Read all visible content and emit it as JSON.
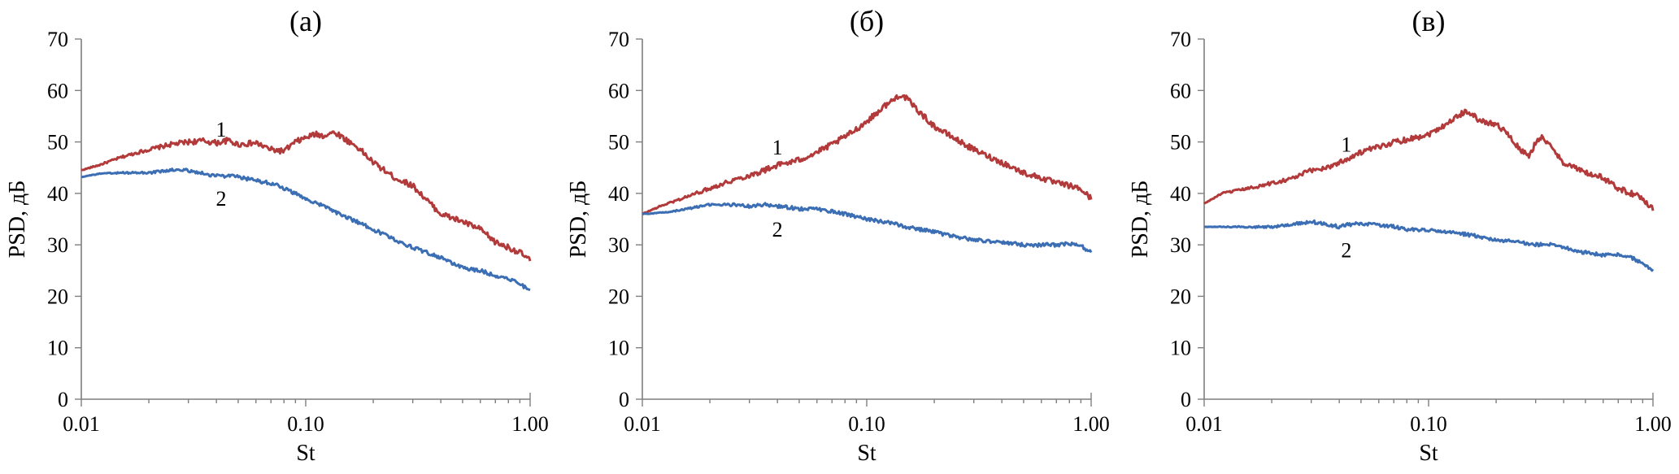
{
  "chart_data": [
    {
      "type": "line",
      "title": "(а)",
      "xlabel": "St",
      "ylabel": "PSD, дБ",
      "xscale": "log",
      "xlim": [
        0.01,
        1.0
      ],
      "ylim": [
        0,
        70
      ],
      "x_ticks": [
        "0.01",
        "0.10",
        "1.00"
      ],
      "y_ticks": [
        "0",
        "10",
        "20",
        "30",
        "40",
        "50",
        "60",
        "70"
      ],
      "grid": false,
      "series": [
        {
          "name": "1",
          "color": "#b23a3a",
          "x": [
            0.01,
            0.012,
            0.015,
            0.018,
            0.02,
            0.025,
            0.03,
            0.035,
            0.04,
            0.045,
            0.05,
            0.06,
            0.07,
            0.08,
            0.09,
            0.1,
            0.11,
            0.12,
            0.13,
            0.14,
            0.15,
            0.17,
            0.2,
            0.25,
            0.3,
            0.35,
            0.4,
            0.5,
            0.6,
            0.7,
            0.8,
            0.9,
            1.0
          ],
          "y": [
            44.5,
            45.5,
            47.0,
            48.0,
            48.5,
            49.5,
            50.0,
            50.2,
            49.8,
            50.3,
            49.5,
            49.8,
            48.5,
            48.2,
            50.0,
            50.8,
            51.5,
            51.2,
            51.8,
            51.5,
            50.5,
            49.0,
            46.0,
            43.0,
            41.5,
            38.5,
            36.0,
            34.5,
            33.0,
            30.5,
            29.5,
            28.5,
            27.0
          ]
        },
        {
          "name": "2",
          "color": "#3c6eb4",
          "x": [
            0.01,
            0.012,
            0.015,
            0.02,
            0.025,
            0.03,
            0.035,
            0.04,
            0.05,
            0.06,
            0.07,
            0.08,
            0.1,
            0.12,
            0.15,
            0.2,
            0.25,
            0.3,
            0.4,
            0.5,
            0.6,
            0.7,
            0.8,
            0.9,
            1.0
          ],
          "y": [
            43.2,
            43.8,
            44.0,
            44.0,
            44.5,
            44.5,
            43.8,
            43.5,
            43.2,
            42.5,
            42.0,
            41.0,
            39.0,
            37.5,
            35.5,
            33.0,
            31.0,
            29.5,
            27.5,
            25.5,
            25.0,
            24.0,
            23.5,
            22.5,
            21.0
          ]
        }
      ],
      "annotations": [
        {
          "text": "1",
          "x": 0.042,
          "y": 52.5
        },
        {
          "text": "2",
          "x": 0.042,
          "y": 39.0
        }
      ]
    },
    {
      "type": "line",
      "title": "(б)",
      "xlabel": "St",
      "ylabel": "PSD, дБ",
      "xscale": "log",
      "xlim": [
        0.01,
        1.0
      ],
      "ylim": [
        0,
        70
      ],
      "x_ticks": [
        "0.01",
        "0.10",
        "1.00"
      ],
      "y_ticks": [
        "0",
        "10",
        "20",
        "30",
        "40",
        "50",
        "60",
        "70"
      ],
      "grid": false,
      "series": [
        {
          "name": "1",
          "color": "#b23a3a",
          "x": [
            0.01,
            0.012,
            0.015,
            0.02,
            0.025,
            0.03,
            0.035,
            0.04,
            0.045,
            0.05,
            0.06,
            0.07,
            0.08,
            0.09,
            0.1,
            0.11,
            0.12,
            0.13,
            0.14,
            0.15,
            0.17,
            0.2,
            0.25,
            0.3,
            0.4,
            0.5,
            0.6,
            0.7,
            0.8,
            0.9,
            1.0
          ],
          "y": [
            36.0,
            37.5,
            39.0,
            41.0,
            42.5,
            43.5,
            44.5,
            45.5,
            46.0,
            46.5,
            48.0,
            49.5,
            51.0,
            52.5,
            54.0,
            55.5,
            57.0,
            58.0,
            59.2,
            58.5,
            56.0,
            53.0,
            50.5,
            48.5,
            46.0,
            44.0,
            43.0,
            42.0,
            41.5,
            40.8,
            39.0
          ]
        },
        {
          "name": "2",
          "color": "#3c6eb4",
          "x": [
            0.01,
            0.012,
            0.015,
            0.02,
            0.025,
            0.03,
            0.035,
            0.04,
            0.05,
            0.06,
            0.07,
            0.08,
            0.1,
            0.12,
            0.15,
            0.2,
            0.25,
            0.3,
            0.4,
            0.5,
            0.6,
            0.7,
            0.8,
            0.9,
            1.0
          ],
          "y": [
            36.0,
            36.2,
            36.8,
            37.8,
            37.8,
            37.5,
            37.8,
            37.5,
            37.0,
            37.0,
            36.5,
            36.0,
            35.0,
            34.5,
            33.5,
            32.5,
            31.5,
            31.0,
            30.5,
            30.0,
            30.0,
            30.0,
            30.2,
            29.8,
            28.5
          ]
        }
      ],
      "annotations": [
        {
          "text": "1",
          "x": 0.04,
          "y": 49.0
        },
        {
          "text": "2",
          "x": 0.04,
          "y": 33.0
        }
      ]
    },
    {
      "type": "line",
      "title": "(в)",
      "xlabel": "St",
      "ylabel": "PSD, дБ",
      "xscale": "log",
      "xlim": [
        0.01,
        1.0
      ],
      "ylim": [
        0,
        70
      ],
      "x_ticks": [
        "0.01",
        "0.10",
        "1.00"
      ],
      "y_ticks": [
        "0",
        "10",
        "20",
        "30",
        "40",
        "50",
        "60",
        "70"
      ],
      "grid": false,
      "series": [
        {
          "name": "1",
          "color": "#b23a3a",
          "x": [
            0.01,
            0.012,
            0.015,
            0.018,
            0.02,
            0.025,
            0.03,
            0.035,
            0.04,
            0.05,
            0.06,
            0.07,
            0.08,
            0.09,
            0.1,
            0.12,
            0.14,
            0.15,
            0.17,
            0.2,
            0.22,
            0.25,
            0.28,
            0.3,
            0.32,
            0.35,
            0.4,
            0.5,
            0.6,
            0.7,
            0.8,
            0.9,
            1.0
          ],
          "y": [
            38.0,
            40.0,
            40.8,
            41.5,
            42.0,
            43.0,
            44.5,
            45.0,
            46.0,
            48.0,
            49.0,
            50.0,
            50.5,
            51.0,
            51.5,
            53.5,
            55.5,
            56.0,
            54.0,
            53.5,
            52.0,
            49.0,
            47.0,
            50.0,
            51.0,
            49.0,
            46.0,
            44.0,
            43.0,
            41.0,
            40.0,
            39.0,
            37.0
          ]
        },
        {
          "name": "2",
          "color": "#3c6eb4",
          "x": [
            0.01,
            0.012,
            0.015,
            0.02,
            0.025,
            0.03,
            0.035,
            0.04,
            0.045,
            0.05,
            0.06,
            0.07,
            0.08,
            0.1,
            0.12,
            0.15,
            0.2,
            0.25,
            0.3,
            0.35,
            0.4,
            0.5,
            0.6,
            0.7,
            0.8,
            0.9,
            1.0
          ],
          "y": [
            33.5,
            33.5,
            33.5,
            33.5,
            34.0,
            34.5,
            34.0,
            33.5,
            34.0,
            34.2,
            33.8,
            33.5,
            33.0,
            32.8,
            32.5,
            32.0,
            31.0,
            30.5,
            30.0,
            30.2,
            29.5,
            28.5,
            28.0,
            28.0,
            27.5,
            26.5,
            25.0
          ]
        }
      ],
      "annotations": [
        {
          "text": "1",
          "x": 0.043,
          "y": 49.5
        },
        {
          "text": "2",
          "x": 0.043,
          "y": 29.0
        }
      ]
    }
  ]
}
